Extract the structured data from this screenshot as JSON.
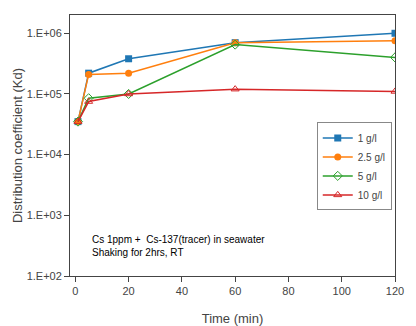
{
  "chart_data": {
    "type": "line",
    "x_label": "Time (min)",
    "y_label": "Distribution coefficient (Kd)",
    "x": [
      1,
      5,
      20,
      60,
      120
    ],
    "series": [
      {
        "name": "1 g/l",
        "values": [
          35000.0,
          220000.0,
          380000.0,
          700000.0,
          1000000.0
        ],
        "marker": "square"
      },
      {
        "name": "2.5 g/l",
        "values": [
          35000.0,
          210000.0,
          220000.0,
          700000.0,
          750000.0
        ],
        "marker": "circle"
      },
      {
        "name": "5 g/l",
        "values": [
          35000.0,
          85000.0,
          100000.0,
          650000.0,
          400000.0
        ],
        "marker": "diamond-open"
      },
      {
        "name": "10 g/l",
        "values": [
          35000.0,
          75000.0,
          100000.0,
          120000.0,
          110000.0
        ],
        "marker": "triangle-up-open"
      }
    ],
    "annotations": [
      "Cs 1ppm +  Cs-137(tracer) in seawater",
      "Shaking for 2hrs, RT"
    ],
    "log": "y",
    "xlim": [
      -2,
      120
    ],
    "xticks": [
      0,
      20,
      40,
      60,
      80,
      100,
      120
    ],
    "ylim": [
      100.0,
      2000000.0
    ],
    "yticks": [
      {
        "value": 100.0,
        "label": "1.E+02"
      },
      {
        "value": 1000.0,
        "label": "1.E+03"
      },
      {
        "value": 10000.0,
        "label": "1.E+04"
      },
      {
        "value": 100000.0,
        "label": "1.E+05"
      },
      {
        "value": 1000000.0,
        "label": "1.E+06"
      }
    ],
    "grid": false,
    "legend": "right"
  }
}
